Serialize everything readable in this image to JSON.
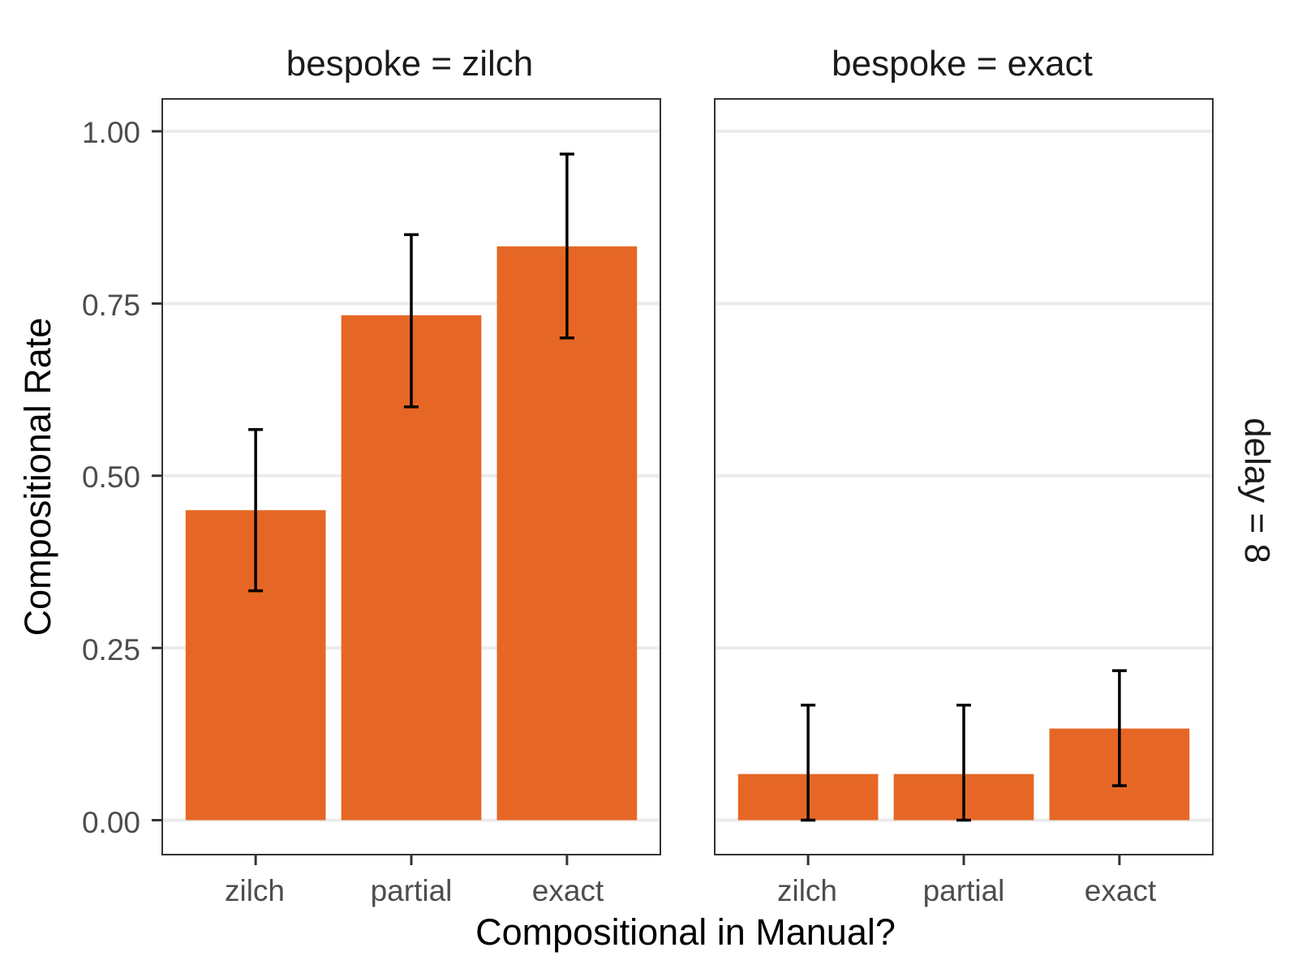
{
  "chart_data": {
    "type": "bar",
    "ylabel": "Compositional Rate",
    "xlabel": "Compositional in Manual?",
    "row_strip": "delay = 8",
    "categories": [
      "zilch",
      "partial",
      "exact"
    ],
    "yticks": [
      "0.00",
      "0.25",
      "0.50",
      "0.75",
      "1.00"
    ],
    "ylim": [
      -0.05,
      1.047
    ],
    "grid": true,
    "bar_color": "#E66725",
    "panels": [
      {
        "title": "bespoke = zilch",
        "values": [
          0.45,
          0.733,
          0.833
        ],
        "error_low": [
          0.333,
          0.6,
          0.7
        ],
        "error_high": [
          0.567,
          0.85,
          0.967
        ]
      },
      {
        "title": "bespoke = exact",
        "values": [
          0.067,
          0.067,
          0.133
        ],
        "error_low": [
          0.0,
          0.0,
          0.05
        ],
        "error_high": [
          0.167,
          0.167,
          0.217
        ]
      }
    ]
  }
}
